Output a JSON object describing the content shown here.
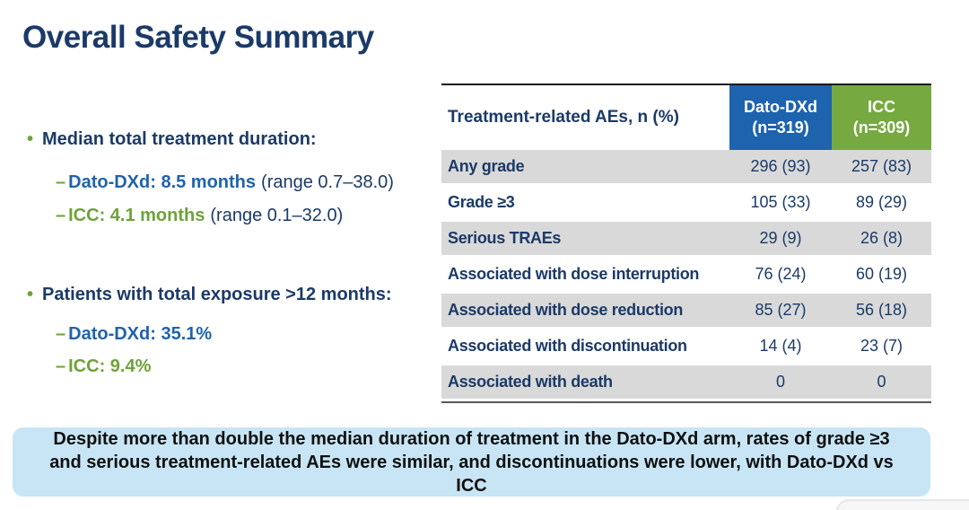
{
  "title": "Overall Safety Summary",
  "bullets": [
    {
      "marker": "•",
      "heading": "Median total treatment duration:",
      "subs": [
        {
          "dash": "–",
          "main": "Dato-DXd: 8.5 months",
          "range": "(range 0.7–38.0)"
        },
        {
          "dash": "–",
          "main": "ICC: 4.1 months",
          "range": "(range 0.1–32.0)"
        }
      ]
    },
    {
      "marker": "•",
      "heading": "Patients with total exposure >12 months:",
      "subs": [
        {
          "dash": "–",
          "main": "Dato-DXd: 35.1%",
          "range": ""
        },
        {
          "dash": "–",
          "main": "ICC: 9.4%",
          "range": ""
        }
      ]
    }
  ],
  "table": {
    "header": {
      "label": "Treatment-related AEs, n (%)",
      "dato_line1": "Dato-DXd",
      "dato_line2": "(n=319)",
      "icc_line1": "ICC",
      "icc_line2": "(n=309)"
    },
    "rows": [
      {
        "label": "Any grade",
        "dato": "296 (93)",
        "icc": "257 (83)"
      },
      {
        "label": "Grade ≥3",
        "dato": "105 (33)",
        "icc": "89 (29)"
      },
      {
        "label": "Serious TRAEs",
        "dato": "29 (9)",
        "icc": "26 (8)"
      },
      {
        "label": "Associated with dose interruption",
        "dato": "76 (24)",
        "icc": "60 (19)"
      },
      {
        "label": "Associated with dose reduction",
        "dato": "85 (27)",
        "icc": "56 (18)"
      },
      {
        "label": "Associated with discontinuation",
        "dato": "14 (4)",
        "icc": "23 (7)"
      },
      {
        "label": "Associated with death",
        "dato": "0",
        "icc": "0"
      }
    ]
  },
  "callout": {
    "text": "Despite more than double the median duration of treatment in the Dato-DXd arm, rates of grade ≥3 and serious treatment-related AEs were similar, and discontinuations were lower, with Dato-DXd vs ICC"
  },
  "colors": {
    "navy": "#1B3A68",
    "blue": "#1E63AE",
    "green": "#76A93F",
    "row_gray": "#D9D9D9",
    "callout_bg": "#C8E5F5"
  }
}
